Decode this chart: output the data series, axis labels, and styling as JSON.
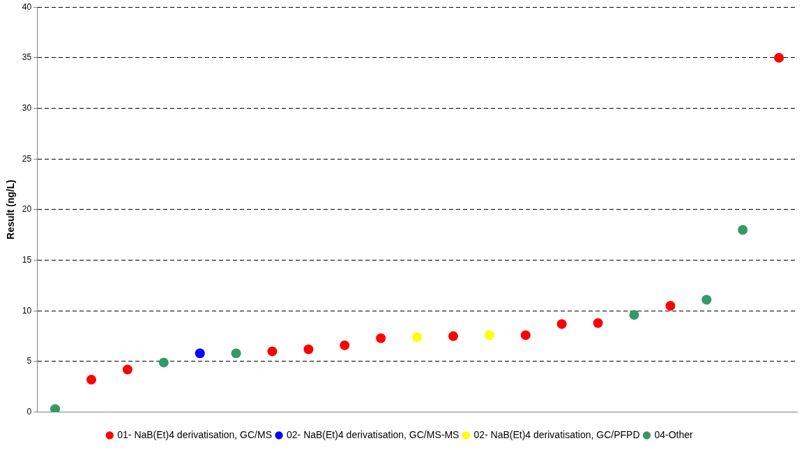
{
  "chart_data": {
    "type": "scatter",
    "ylabel": "Result (ng/L)",
    "categories": [
      null,
      null,
      null,
      null,
      null,
      null,
      null,
      null,
      null,
      null,
      null,
      null,
      null,
      null,
      null,
      null,
      null,
      null,
      null,
      null,
      null
    ],
    "series": [
      {
        "name": "01- NaB(Et)4 derivatisation, GC/MS",
        "color": "#ff0000",
        "values": [
          null,
          3.2,
          4.2,
          null,
          null,
          null,
          6.0,
          6.2,
          6.6,
          7.3,
          null,
          7.5,
          null,
          7.6,
          8.7,
          8.8,
          null,
          10.5,
          null,
          null,
          35.0
        ]
      },
      {
        "name": "02- NaB(Et)4 derivatisation, GC/MS-MS",
        "color": "#0000ff",
        "values": [
          null,
          null,
          null,
          null,
          5.8,
          null,
          null,
          null,
          null,
          null,
          null,
          null,
          null,
          null,
          null,
          null,
          null,
          null,
          null,
          null,
          null
        ]
      },
      {
        "name": "02- NaB(Et)4 derivatisation, GC/PFPD",
        "color": "#ffff00",
        "values": [
          null,
          null,
          null,
          null,
          null,
          null,
          null,
          null,
          null,
          null,
          7.4,
          null,
          7.6,
          null,
          null,
          null,
          null,
          null,
          null,
          null,
          null
        ]
      },
      {
        "name": "04-Other",
        "color": "#339966",
        "values": [
          0.3,
          null,
          null,
          4.9,
          null,
          5.8,
          null,
          null,
          null,
          null,
          null,
          null,
          null,
          null,
          null,
          null,
          9.6,
          null,
          11.1,
          18.0,
          null
        ]
      }
    ],
    "ylim": [
      0,
      40
    ],
    "yticks": [
      0,
      5,
      10,
      15,
      20,
      25,
      30,
      35,
      40
    ],
    "grid": "y",
    "legend": "bottom",
    "marker": "circle"
  }
}
